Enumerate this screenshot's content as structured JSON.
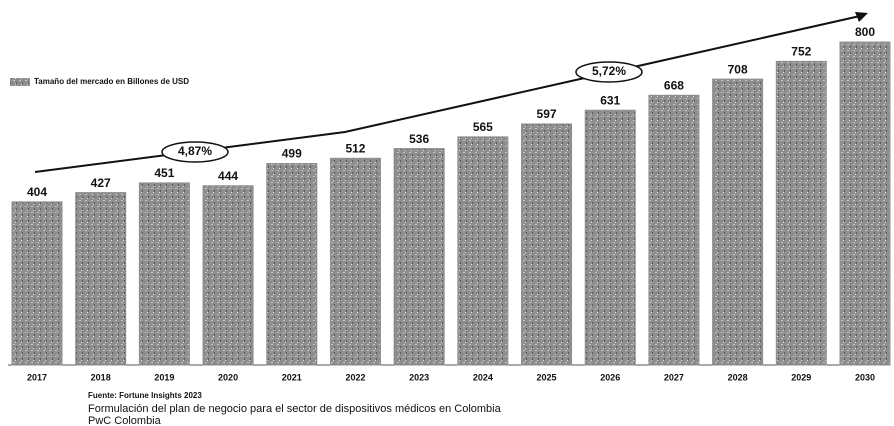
{
  "chart_data": {
    "type": "bar",
    "legend": "Tamaño del mercado en Billones de USD",
    "categories": [
      "2017",
      "2018",
      "2019",
      "2020",
      "2021",
      "2022",
      "2023",
      "2024",
      "2025",
      "2026",
      "2027",
      "2028",
      "2029",
      "2030"
    ],
    "values": [
      404,
      427,
      451,
      444,
      499,
      512,
      536,
      565,
      597,
      631,
      668,
      708,
      752,
      800
    ],
    "color": "#8e8e8e",
    "annotations": [
      "4,87%",
      "5,72%"
    ],
    "source": "Fuente: Fortune Insights 2023",
    "notes": [
      "Formulación del plan de negocio para el sector de dispositivos médicos en Colombia",
      "PwC Colombia"
    ]
  }
}
